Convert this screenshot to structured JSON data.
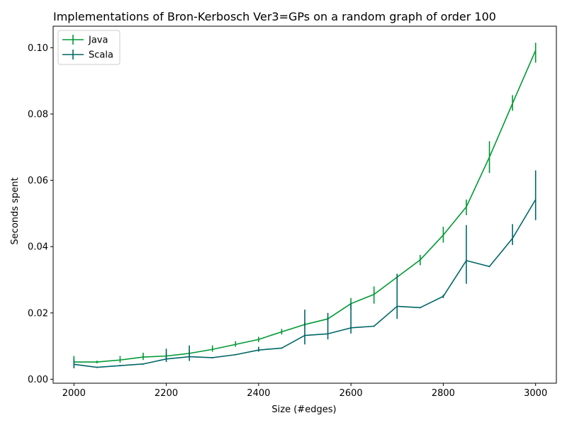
{
  "chart_data": {
    "type": "line",
    "title": "Implementations of Bron-Kerbosch Ver3=GPs on a random graph of order 100",
    "xlabel": "Size (#edges)",
    "ylabel": "Seconds spent",
    "xlim": [
      1955,
      3045
    ],
    "ylim": [
      -0.0012,
      0.1065
    ],
    "xticks": [
      2000,
      2200,
      2400,
      2600,
      2800,
      3000
    ],
    "xtick_labels": [
      "2000",
      "2200",
      "2400",
      "2600",
      "2800",
      "3000"
    ],
    "yticks": [
      0.0,
      0.02,
      0.04,
      0.06,
      0.08,
      0.1
    ],
    "ytick_labels": [
      "0.00",
      "0.02",
      "0.04",
      "0.06",
      "0.08",
      "0.10"
    ],
    "grid": false,
    "legend": "top-left",
    "x": [
      2000,
      2050,
      2100,
      2150,
      2200,
      2250,
      2300,
      2350,
      2400,
      2450,
      2500,
      2550,
      2600,
      2650,
      2700,
      2750,
      2800,
      2850,
      2900,
      2950,
      3000
    ],
    "series": [
      {
        "name": "Java",
        "color": "#009933",
        "values": [
          0.0052,
          0.0052,
          0.0058,
          0.0067,
          0.007,
          0.0078,
          0.009,
          0.0105,
          0.012,
          0.0143,
          0.0165,
          0.0182,
          0.0228,
          0.0256,
          0.0308,
          0.036,
          0.0435,
          0.052,
          0.067,
          0.0832,
          0.0992
        ],
        "err_low": [
          0.0035,
          0.0048,
          0.005,
          0.0058,
          0.0062,
          0.007,
          0.0083,
          0.0098,
          0.0112,
          0.0135,
          0.016,
          0.0175,
          0.021,
          0.0228,
          0.0298,
          0.0344,
          0.0412,
          0.0495,
          0.0622,
          0.081,
          0.0955
        ],
        "err_high": [
          0.007,
          0.0056,
          0.007,
          0.008,
          0.008,
          0.0088,
          0.0102,
          0.0115,
          0.0128,
          0.0152,
          0.0172,
          0.0188,
          0.0245,
          0.028,
          0.0318,
          0.0375,
          0.046,
          0.0542,
          0.0718,
          0.0857,
          0.1015
        ]
      },
      {
        "name": "Scala",
        "color": "#006666",
        "values": [
          0.0045,
          0.0036,
          0.0041,
          0.0046,
          0.0061,
          0.0068,
          0.0065,
          0.0074,
          0.0088,
          0.0094,
          0.0132,
          0.0137,
          0.0155,
          0.016,
          0.022,
          0.0216,
          0.025,
          0.0358,
          0.034,
          0.0425,
          0.0542
        ],
        "err_low": [
          0.0033,
          0.0034,
          0.0039,
          0.0044,
          0.0052,
          0.0055,
          0.0063,
          0.0072,
          0.0083,
          0.0092,
          0.0105,
          0.012,
          0.0138,
          0.0158,
          0.0182,
          0.0214,
          0.0245,
          0.0288,
          0.0338,
          0.0405,
          0.048
        ],
        "err_high": [
          0.006,
          0.0038,
          0.0043,
          0.0048,
          0.0092,
          0.0102,
          0.0067,
          0.0076,
          0.0098,
          0.0096,
          0.021,
          0.02,
          0.023,
          0.0162,
          0.0318,
          0.0218,
          0.0255,
          0.0465,
          0.0342,
          0.0468,
          0.063
        ]
      }
    ]
  }
}
